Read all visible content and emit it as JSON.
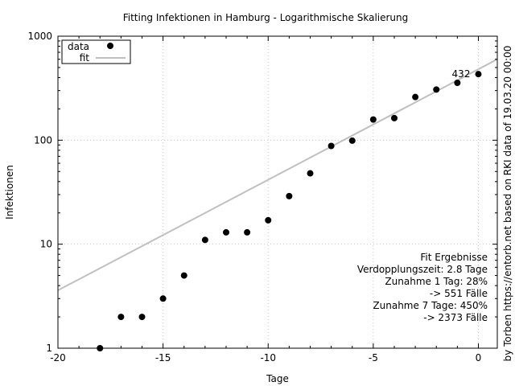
{
  "chart_data": {
    "type": "scatter",
    "title": "Fitting Infektionen in Hamburg - Logarithmische Skalierung",
    "xlabel": "Tage",
    "ylabel": "Infektionen",
    "y_scale": "log",
    "xlim": [
      -20,
      0.9
    ],
    "ylim": [
      1,
      1000
    ],
    "x_ticks": [
      -20,
      -15,
      -10,
      -5,
      0
    ],
    "x_tick_labels": [
      "-20",
      "-15",
      "-10",
      "-5",
      "0"
    ],
    "y_ticks": [
      1,
      10,
      100,
      1000
    ],
    "y_tick_labels": [
      "1",
      "10",
      "100",
      "1000"
    ],
    "grid": true,
    "legend_position": "top-left",
    "series": [
      {
        "name": "data",
        "kind": "points",
        "color": "#000000",
        "x": [
          -18,
          -17,
          -16,
          -15,
          -14,
          -13,
          -12,
          -11,
          -10,
          -9,
          -8,
          -7,
          -6,
          -5,
          -4,
          -3,
          -2,
          -1,
          0
        ],
        "y": [
          1,
          2,
          2,
          3,
          5,
          11,
          13,
          13,
          17,
          29,
          48,
          88,
          99,
          158,
          163,
          260,
          307,
          356,
          432
        ]
      },
      {
        "name": "fit",
        "kind": "line",
        "color": "#c0c0c0",
        "x": [
          -20,
          0.9
        ],
        "y": [
          3.6,
          600
        ]
      }
    ],
    "point_label": {
      "x": 0,
      "y": 432,
      "text": "432"
    },
    "annotations": [
      "Fit Ergebnisse",
      "Verdopplungszeit: 2.8 Tage",
      "Zunahme 1 Tag: 28%",
      "-> 551 Fälle",
      "Zunahme 7 Tage: 450%",
      "-> 2373 Fälle"
    ],
    "side_note": "by Torben https://entorb.net based on RKI data of 19.03.20 00:00"
  }
}
